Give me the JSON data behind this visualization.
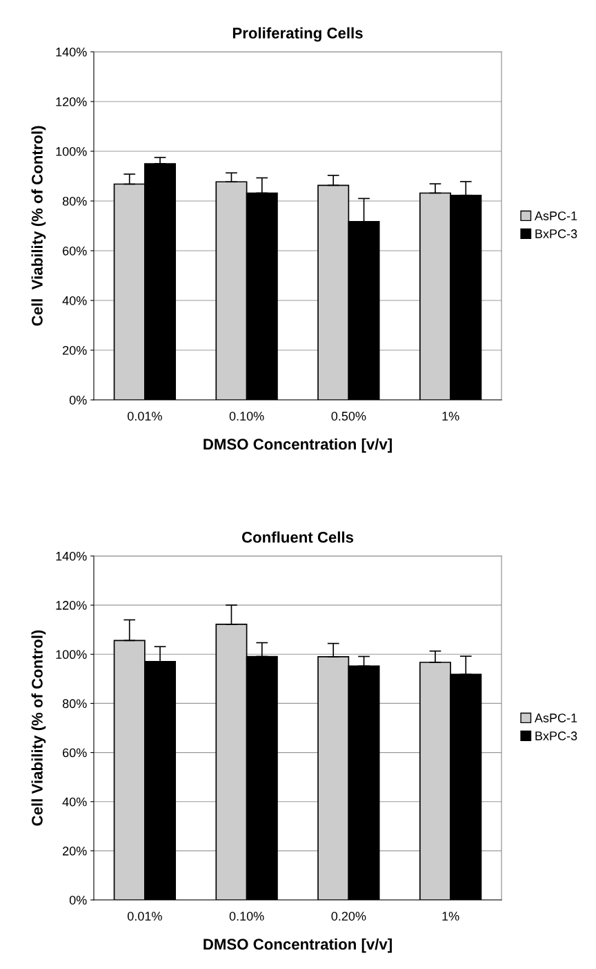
{
  "chart_data": [
    {
      "type": "bar",
      "title": "Proliferating Cells",
      "xlabel": "DMSO Concentration [v/v]",
      "ylabel": "Cell  Viability (% of Control)",
      "categories": [
        "0.01%",
        "0.10%",
        "0.50%",
        "1%"
      ],
      "series": [
        {
          "name": "AsPC-1",
          "color": "#cccccc",
          "values": [
            86.8,
            87.7,
            86.3,
            83.2
          ],
          "errors": [
            [
              86.8,
              90.8
            ],
            [
              87.7,
              91.3
            ],
            [
              86.3,
              90.3
            ],
            [
              83.2,
              86.9
            ]
          ]
        },
        {
          "name": "BxPC-3",
          "color": "#000000",
          "values": [
            95.0,
            83.2,
            71.7,
            82.3
          ],
          "errors": [
            [
              95.0,
              97.5
            ],
            [
              83.2,
              89.3
            ],
            [
              71.7,
              81.0
            ],
            [
              82.3,
              87.8
            ]
          ]
        }
      ],
      "ylim": [
        0,
        140
      ],
      "yticks": [
        {
          "value": 0,
          "label": "0%"
        },
        {
          "value": 20,
          "label": "20%"
        },
        {
          "value": 40,
          "label": "40%"
        },
        {
          "value": 60,
          "label": "60%"
        },
        {
          "value": 80,
          "label": "80%"
        },
        {
          "value": 100,
          "label": "100%"
        },
        {
          "value": 120,
          "label": "120%"
        },
        {
          "value": 140,
          "label": "140%"
        }
      ],
      "grid": "y",
      "legend": "right"
    },
    {
      "type": "bar",
      "title": "Confluent Cells",
      "xlabel": "DMSO Concentration [v/v]",
      "ylabel": "Cell Viability (% of Control)",
      "categories": [
        "0.01%",
        "0.10%",
        "0.20%",
        "1%"
      ],
      "series": [
        {
          "name": "AsPC-1",
          "color": "#cccccc",
          "values": [
            105.6,
            112.2,
            99.0,
            96.7
          ],
          "errors": [
            [
              105.6,
              114.0
            ],
            [
              112.2,
              120.0
            ],
            [
              99.0,
              104.4
            ],
            [
              96.7,
              101.3
            ]
          ]
        },
        {
          "name": "BxPC-3",
          "color": "#000000",
          "values": [
            97.0,
            99.1,
            95.2,
            91.8
          ],
          "errors": [
            [
              97.0,
              103.1
            ],
            [
              99.1,
              104.7
            ],
            [
              95.2,
              99.1
            ],
            [
              91.8,
              99.2
            ]
          ]
        }
      ],
      "ylim": [
        0,
        140
      ],
      "yticks": [
        {
          "value": 0,
          "label": "0%"
        },
        {
          "value": 20,
          "label": "20%"
        },
        {
          "value": 40,
          "label": "40%"
        },
        {
          "value": 60,
          "label": "60%"
        },
        {
          "value": 80,
          "label": "80%"
        },
        {
          "value": 100,
          "label": "100%"
        },
        {
          "value": 120,
          "label": "120%"
        },
        {
          "value": 140,
          "label": "140%"
        }
      ],
      "grid": "y",
      "legend": "right"
    }
  ]
}
